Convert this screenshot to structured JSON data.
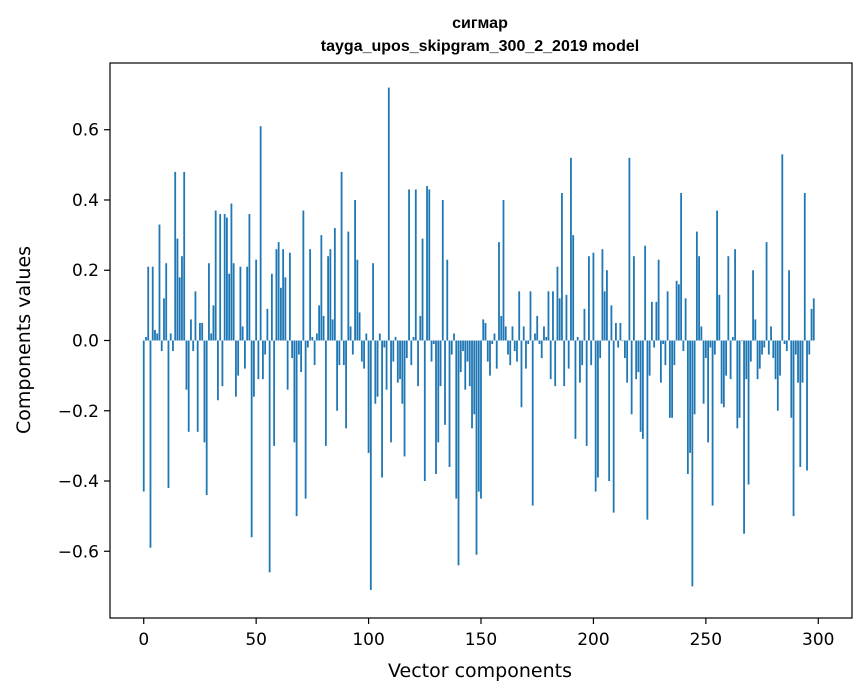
{
  "chart_data": {
    "type": "bar",
    "title": "сигмар",
    "subtitle": "tayga_upos_skipgram_300_2_2019 model",
    "xlabel": "Vector components",
    "ylabel": "Components values",
    "xlim": [
      -15,
      315
    ],
    "ylim": [
      -0.79,
      0.79
    ],
    "xticks": [
      0,
      50,
      100,
      150,
      200,
      250,
      300
    ],
    "xtick_labels": [
      "0",
      "50",
      "100",
      "150",
      "200",
      "250",
      "300"
    ],
    "yticks": [
      -0.6,
      -0.4,
      -0.2,
      0.0,
      0.2,
      0.4,
      0.6
    ],
    "ytick_labels": [
      "−0.6",
      "−0.4",
      "−0.2",
      "0.0",
      "0.2",
      "0.4",
      "0.6"
    ],
    "grid": false,
    "bar_color": "#1f77b4",
    "series": [
      {
        "name": "сигмар",
        "x_start": 0,
        "values": [
          -0.43,
          0.01,
          0.21,
          -0.59,
          0.21,
          0.03,
          0.02,
          0.33,
          -0.03,
          0.12,
          0.22,
          -0.42,
          0.02,
          -0.03,
          0.48,
          0.29,
          0.18,
          0.24,
          0.48,
          -0.14,
          -0.26,
          0.06,
          -0.03,
          0.14,
          -0.26,
          0.05,
          0.05,
          -0.29,
          -0.44,
          0.22,
          0.02,
          0.1,
          0.37,
          -0.17,
          0.36,
          -0.13,
          0.36,
          0.35,
          0.19,
          0.39,
          0.22,
          -0.16,
          -0.1,
          0.21,
          0.04,
          -0.08,
          0.21,
          0.36,
          -0.56,
          -0.16,
          0.23,
          -0.11,
          0.61,
          -0.11,
          -0.04,
          0.09,
          -0.66,
          0.19,
          -0.3,
          0.26,
          0.28,
          0.15,
          0.26,
          0.18,
          -0.14,
          0.25,
          -0.05,
          -0.29,
          -0.5,
          -0.04,
          -0.09,
          0.37,
          -0.45,
          -0.02,
          0.26,
          0.01,
          -0.07,
          0.02,
          0.1,
          0.3,
          0.07,
          -0.3,
          0.24,
          0.26,
          0.06,
          0.32,
          -0.2,
          -0.07,
          0.48,
          -0.07,
          -0.25,
          0.31,
          0.04,
          -0.04,
          0.4,
          0.23,
          0.08,
          -0.06,
          -0.08,
          0.02,
          -0.32,
          -0.71,
          0.22,
          -0.18,
          -0.16,
          0.02,
          -0.39,
          -0.02,
          -0.14,
          0.72,
          -0.29,
          -0.06,
          0.01,
          -0.12,
          -0.11,
          -0.18,
          -0.33,
          -0.05,
          0.43,
          -0.07,
          0.01,
          0.43,
          -0.13,
          0.07,
          0.29,
          -0.4,
          0.44,
          0.43,
          -0.06,
          -0.01,
          -0.38,
          -0.29,
          -0.13,
          0.4,
          -0.24,
          0.23,
          -0.36,
          -0.04,
          0.02,
          -0.45,
          -0.64,
          -0.09,
          -0.03,
          -0.14,
          -0.06,
          -0.13,
          -0.25,
          -0.21,
          -0.61,
          -0.43,
          -0.45,
          0.06,
          0.05,
          -0.06,
          -0.1,
          -0.01,
          0.02,
          -0.08,
          0.28,
          0.07,
          0.4,
          0.04,
          -0.04,
          -0.07,
          0.04,
          -0.03,
          -0.06,
          0.14,
          -0.19,
          0.04,
          -0.08,
          -0.01,
          0.14,
          -0.47,
          0.02,
          0.07,
          -0.01,
          -0.05,
          0.04,
          0.01,
          0.14,
          -0.11,
          0.14,
          -0.13,
          0.21,
          0.12,
          0.42,
          -0.13,
          0.13,
          -0.08,
          0.52,
          0.3,
          -0.28,
          0.01,
          -0.12,
          -0.07,
          0.09,
          -0.3,
          0.24,
          -0.07,
          0.25,
          -0.43,
          -0.39,
          -0.05,
          0.26,
          0.14,
          0.2,
          -0.4,
          0.1,
          -0.49,
          0.05,
          -0.02,
          0.05,
          0.0,
          -0.05,
          -0.12,
          0.52,
          -0.21,
          0.24,
          -0.11,
          -0.09,
          -0.26,
          -0.28,
          0.27,
          -0.51,
          -0.1,
          0.11,
          -0.02,
          0.11,
          0.23,
          -0.12,
          -0.01,
          -0.07,
          0.14,
          -0.22,
          -0.22,
          -0.07,
          0.17,
          0.16,
          0.42,
          -0.03,
          0.12,
          -0.38,
          -0.32,
          -0.7,
          -0.21,
          0.31,
          0.24,
          0.04,
          -0.18,
          -0.05,
          -0.29,
          -0.02,
          -0.47,
          -0.04,
          0.37,
          0.13,
          -0.18,
          -0.19,
          -0.1,
          0.24,
          -0.11,
          0.01,
          0.26,
          -0.25,
          -0.22,
          0.0,
          -0.55,
          -0.11,
          -0.41,
          -0.06,
          0.2,
          0.06,
          -0.11,
          -0.08,
          -0.04,
          -0.02,
          0.28,
          -0.04,
          0.04,
          -0.05,
          -0.11,
          -0.2,
          -0.1,
          0.53,
          -0.01,
          -0.03,
          0.2,
          -0.22,
          -0.5,
          -0.04,
          -0.12,
          -0.36,
          -0.12,
          0.42,
          -0.37,
          -0.04,
          0.09,
          0.12
        ]
      }
    ]
  }
}
